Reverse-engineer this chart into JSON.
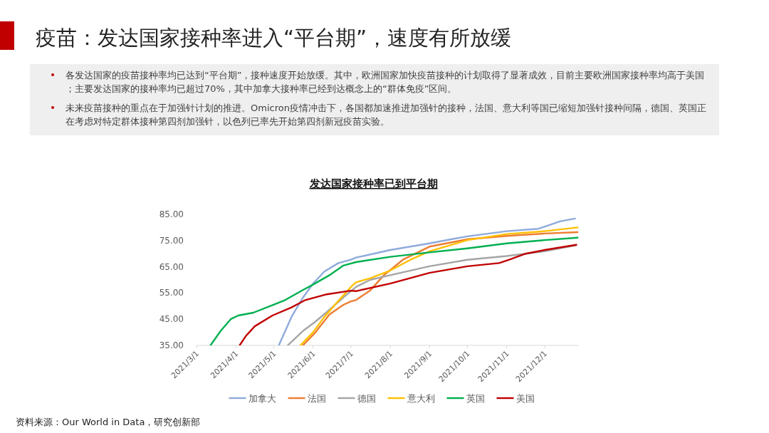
{
  "chart_data": {
    "type": "line",
    "title": "疫苗：发达国家接种率进入“平台期”，速度有所放缓",
    "subtitle": "发达国家接种率已到平台期",
    "annotations": [
      "各发达国家的疫苗接种率均已达到“平台期”，接种速度开始放缓。其中，欧洲国家加快疫苗接种的计划取得了显著成效，目前主要欧洲国家接种率均高于美国；主要发达国家的接种率均已超过70%，其中加拿大接种率已经到达概念上的“群体免疫”区间。",
      "未来疫苗接种的重点在于加强针计划的推进。Omicron疫情冲击下，各国都加速推进加强针的接种，法国、意大利等国已缩短加强针接种间隔，德国、英国正在考虑对特定群体接种第四剂加强针，以色列已率先开始第四剂新冠疫苗实验。",
      "资料来源：Our World in Data，研究创新部"
    ],
    "xlim": [
      "2021-03-01",
      "2021-12-28"
    ],
    "xticks": [
      {
        "value": "2021-03-01",
        "label": "2021/3/1"
      },
      {
        "value": "2021-04-01",
        "label": "2021/4/1"
      },
      {
        "value": "2021-05-01",
        "label": "2021/5/1"
      },
      {
        "value": "2021-06-01",
        "label": "2021/6/1"
      },
      {
        "value": "2021-07-01",
        "label": "2021/7/1"
      },
      {
        "value": "2021-08-01",
        "label": "2021/8/1"
      },
      {
        "value": "2021-09-01",
        "label": "2021/9/1"
      },
      {
        "value": "2021-10-01",
        "label": "2021/10/1"
      },
      {
        "value": "2021-11-01",
        "label": "2021/11/1"
      },
      {
        "value": "2021-12-01",
        "label": "2021/12/1"
      }
    ],
    "ylim": [
      35,
      85
    ],
    "yticks": [
      {
        "value": 35,
        "label": "35.00"
      },
      {
        "value": 45,
        "label": "45.00"
      },
      {
        "value": 55,
        "label": "55.00"
      },
      {
        "value": 65,
        "label": "65.00"
      },
      {
        "value": 75,
        "label": "75.00"
      },
      {
        "value": 85,
        "label": "85.00"
      }
    ],
    "legend": "bottom",
    "series": [
      {
        "name": "加拿大",
        "color": "#8faadc",
        "x": [
          "2021-05-05",
          "2021-05-15",
          "2021-05-24",
          "2021-06-01",
          "2021-06-10",
          "2021-06-21",
          "2021-07-01",
          "2021-07-05",
          "2021-08-01",
          "2021-09-01",
          "2021-09-18",
          "2021-10-01",
          "2021-11-01",
          "2021-11-26",
          "2021-12-02",
          "2021-12-13",
          "2021-12-25"
        ],
        "values": [
          35,
          45.9,
          53.2,
          58.6,
          63.2,
          66.4,
          67.7,
          68.5,
          71.4,
          73.9,
          75.5,
          76.6,
          78.6,
          79.5,
          80.5,
          82.3,
          83.4
        ]
      },
      {
        "name": "法国",
        "color": "#ed7d31",
        "x": [
          "2021-05-24",
          "2021-06-03",
          "2021-06-14",
          "2021-06-25",
          "2021-07-01",
          "2021-07-05",
          "2021-07-16",
          "2021-07-27",
          "2021-08-11",
          "2021-09-01",
          "2021-10-01",
          "2021-11-01",
          "2021-12-01",
          "2021-12-27"
        ],
        "values": [
          35,
          40,
          46.8,
          50.5,
          51.8,
          52.3,
          55.9,
          61.8,
          67.7,
          72.7,
          75.5,
          76.8,
          77.7,
          78.2
        ]
      },
      {
        "name": "德国",
        "color": "#a5a5a5",
        "x": [
          "2021-05-12",
          "2021-05-24",
          "2021-06-03",
          "2021-06-14",
          "2021-06-27",
          "2021-07-05",
          "2021-07-16",
          "2021-08-01",
          "2021-09-01",
          "2021-10-01",
          "2021-11-01",
          "2021-12-01",
          "2021-12-26"
        ],
        "values": [
          35,
          40.5,
          44.1,
          48.6,
          54.1,
          57.3,
          60,
          61.8,
          65.2,
          67.7,
          69.1,
          70.9,
          73.2
        ]
      },
      {
        "name": "意大利",
        "color": "#ffc000",
        "x": [
          "2021-05-22",
          "2021-06-01",
          "2021-06-10",
          "2021-06-20",
          "2021-07-01",
          "2021-07-05",
          "2021-07-16",
          "2021-08-01",
          "2021-08-17",
          "2021-09-01",
          "2021-10-01",
          "2021-11-01",
          "2021-12-01",
          "2021-12-27"
        ],
        "values": [
          35,
          40,
          45.9,
          51.4,
          57.3,
          59.1,
          60.6,
          63.6,
          67.7,
          70.9,
          75.2,
          77.5,
          78.6,
          80
        ]
      },
      {
        "name": "英国",
        "color": "#00b050",
        "x": [
          "2021-03-12",
          "2021-03-20",
          "2021-03-28",
          "2021-04-03",
          "2021-04-15",
          "2021-04-28",
          "2021-05-10",
          "2021-05-25",
          "2021-06-01",
          "2021-06-14",
          "2021-06-25",
          "2021-07-05",
          "2021-08-01",
          "2021-09-01",
          "2021-10-01",
          "2021-11-01",
          "2021-12-01",
          "2021-12-27"
        ],
        "values": [
          35,
          40.5,
          45,
          46.4,
          47.5,
          50,
          52.3,
          56.4,
          58.2,
          61.8,
          65.5,
          66.8,
          68.8,
          70.5,
          72,
          73.9,
          75.2,
          76.1
        ]
      },
      {
        "name": "美国",
        "color": "#c00000",
        "x": [
          "2021-04-04",
          "2021-04-09",
          "2021-04-16",
          "2021-04-30",
          "2021-05-15",
          "2021-05-26",
          "2021-06-12",
          "2021-07-01",
          "2021-07-05",
          "2021-08-01",
          "2021-09-01",
          "2021-10-01",
          "2021-10-26",
          "2021-11-03",
          "2021-11-16",
          "2021-12-01",
          "2021-12-26"
        ],
        "values": [
          35,
          38.6,
          42.3,
          46.4,
          49.5,
          52.3,
          54.5,
          55.9,
          55.7,
          58.6,
          62.7,
          65.2,
          66.4,
          67.7,
          70,
          71.4,
          73.4
        ]
      }
    ]
  }
}
